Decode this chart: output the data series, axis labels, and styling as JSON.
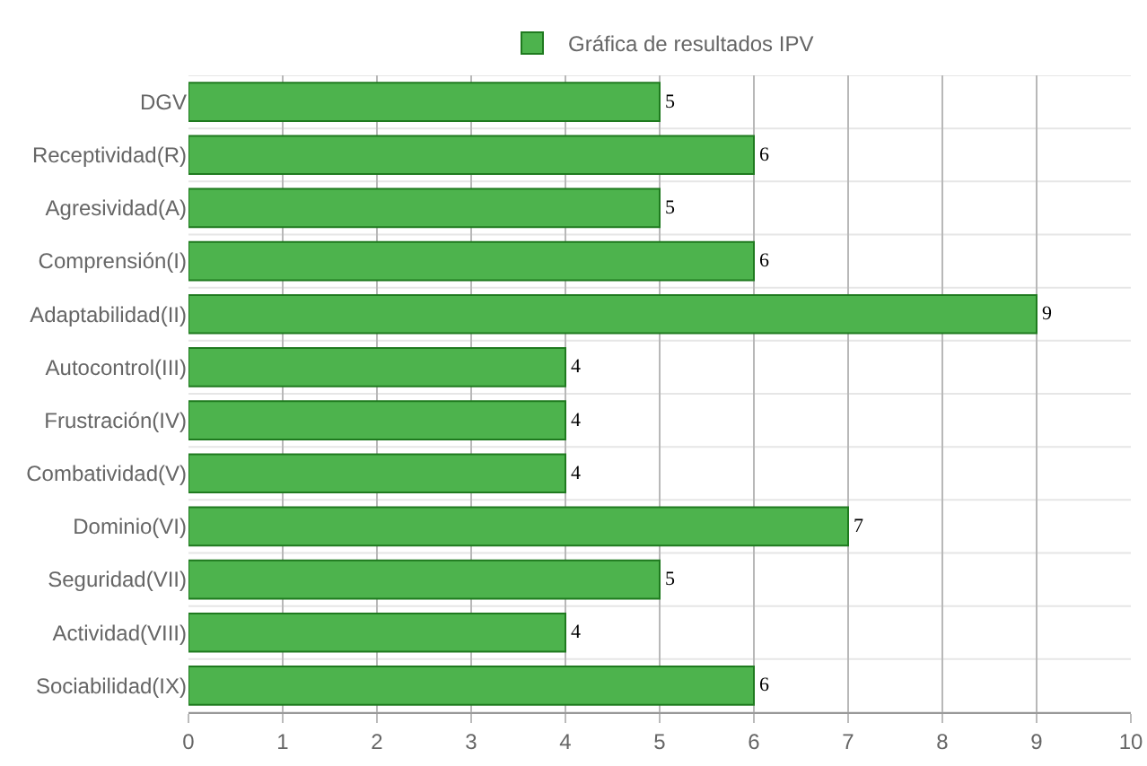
{
  "chart_data": {
    "type": "bar",
    "orientation": "horizontal",
    "categories": [
      "DGV",
      "Receptividad(R)",
      "Agresividad(A)",
      "Comprensión(I)",
      "Adaptabilidad(II)",
      "Autocontrol(III)",
      "Frustración(IV)",
      "Combatividad(V)",
      "Dominio(VI)",
      "Seguridad(VII)",
      "Actividad(VIII)",
      "Sociabilidad(IX)"
    ],
    "series": [
      {
        "name": "Gráfica de resultados IPV",
        "color": "#4db34d",
        "values": [
          5,
          6,
          5,
          6,
          9,
          4,
          4,
          4,
          7,
          5,
          4,
          6
        ]
      }
    ],
    "xlim": [
      0,
      10
    ],
    "xticks": [
      0,
      1,
      2,
      3,
      4,
      5,
      6,
      7,
      8,
      9,
      10
    ],
    "grid": true,
    "legend": "top",
    "data_labels": true
  }
}
